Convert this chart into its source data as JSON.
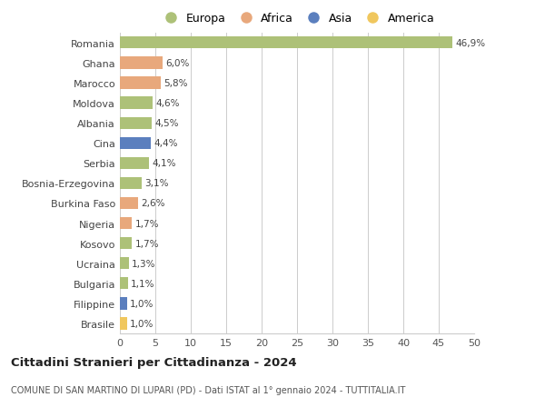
{
  "categories": [
    "Romania",
    "Ghana",
    "Marocco",
    "Moldova",
    "Albania",
    "Cina",
    "Serbia",
    "Bosnia-Erzegovina",
    "Burkina Faso",
    "Nigeria",
    "Kosovo",
    "Ucraina",
    "Bulgaria",
    "Filippine",
    "Brasile"
  ],
  "values": [
    46.9,
    6.0,
    5.8,
    4.6,
    4.5,
    4.4,
    4.1,
    3.1,
    2.6,
    1.7,
    1.7,
    1.3,
    1.1,
    1.0,
    1.0
  ],
  "labels": [
    "46,9%",
    "6,0%",
    "5,8%",
    "4,6%",
    "4,5%",
    "4,4%",
    "4,1%",
    "3,1%",
    "2,6%",
    "1,7%",
    "1,7%",
    "1,3%",
    "1,1%",
    "1,0%",
    "1,0%"
  ],
  "colors": [
    "#adc178",
    "#e8a87c",
    "#e8a87c",
    "#adc178",
    "#adc178",
    "#5b7fbe",
    "#adc178",
    "#adc178",
    "#e8a87c",
    "#e8a87c",
    "#adc178",
    "#adc178",
    "#adc178",
    "#5b7fbe",
    "#f0c75e"
  ],
  "legend_labels": [
    "Europa",
    "Africa",
    "Asia",
    "America"
  ],
  "legend_colors": [
    "#adc178",
    "#e8a87c",
    "#5b7fbe",
    "#f0c75e"
  ],
  "title": "Cittadini Stranieri per Cittadinanza - 2024",
  "subtitle": "COMUNE DI SAN MARTINO DI LUPARI (PD) - Dati ISTAT al 1° gennaio 2024 - TUTTITALIA.IT",
  "xlim": [
    0,
    50
  ],
  "xticks": [
    0,
    5,
    10,
    15,
    20,
    25,
    30,
    35,
    40,
    45,
    50
  ],
  "background_color": "#ffffff",
  "grid_color": "#cccccc"
}
